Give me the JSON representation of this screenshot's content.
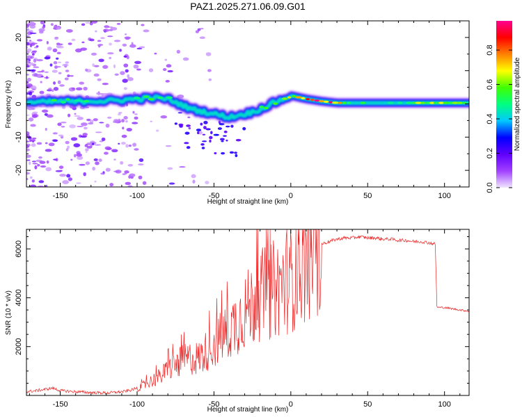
{
  "title": "PAZ1.2025.271.06.09.G01",
  "colors": {
    "snr_line": "#ee2222",
    "background": "#ffffff",
    "axes": "#000000"
  },
  "chart_data": [
    {
      "type": "heatmap",
      "name": "spectrogram",
      "xlabel": "Height of straight line (km)",
      "ylabel": "Frequency (Hz)",
      "xlim": [
        -172,
        116
      ],
      "ylim": [
        -25,
        25
      ],
      "x_ticks": [
        -150,
        -100,
        -50,
        0,
        50,
        100
      ],
      "y_ticks": [
        -20,
        -10,
        0,
        10,
        20
      ],
      "x_tick_labels": [
        "-150",
        "-100",
        "-50",
        "0",
        "50",
        "100"
      ],
      "y_tick_labels": [
        "-20",
        "-10",
        "0",
        "10",
        "20"
      ],
      "colorbar": {
        "label": "Normalized spectral amplitude",
        "range": [
          0,
          0.97
        ],
        "ticks": [
          0.0,
          0.2,
          0.4,
          0.6,
          0.8
        ],
        "tick_labels": [
          "0.0",
          "0.2",
          "0.4",
          "0.6",
          "0.8"
        ],
        "colormap": [
          "#f0e6ff",
          "#a040ff",
          "#6000ff",
          "#0000ff",
          "#00c8ff",
          "#00ff80",
          "#40ff00",
          "#ffff00",
          "#ff8000",
          "#ff0000",
          "#ff0090"
        ]
      },
      "ridge": {
        "x": [
          -172,
          -160,
          -150,
          -140,
          -130,
          -120,
          -110,
          -100,
          -90,
          -80,
          -75,
          -70,
          -65,
          -60,
          -55,
          -50,
          -45,
          -40,
          -35,
          -30,
          -25,
          -20,
          -15,
          -10,
          -5,
          0,
          5,
          10,
          20,
          30,
          40,
          50,
          60,
          70,
          80,
          90,
          100,
          116
        ],
        "freq": [
          0.5,
          0.5,
          0.8,
          0.6,
          1.0,
          0.8,
          1.2,
          1.5,
          1.8,
          1.5,
          0.5,
          -0.5,
          -1.5,
          -2.0,
          -2.5,
          -3.0,
          -3.5,
          -4.0,
          -3.5,
          -3.0,
          -2.5,
          -1.5,
          -0.5,
          0.5,
          1.5,
          2.5,
          2.0,
          1.5,
          0.8,
          0.3,
          0.3,
          0.3,
          0.3,
          0.3,
          0.3,
          0.3,
          0.3,
          0.3
        ],
        "amplitude": [
          0.3,
          0.4,
          0.5,
          0.4,
          0.45,
          0.4,
          0.4,
          0.45,
          0.5,
          0.45,
          0.4,
          0.35,
          0.35,
          0.3,
          0.35,
          0.3,
          0.3,
          0.3,
          0.35,
          0.35,
          0.4,
          0.45,
          0.5,
          0.55,
          0.6,
          0.65,
          0.75,
          0.8,
          0.85,
          0.85,
          0.5,
          0.45,
          0.45,
          0.5,
          0.6,
          0.7,
          0.65,
          0.5
        ]
      }
    },
    {
      "type": "line",
      "name": "snr",
      "xlabel": "Height of straight line (km)",
      "ylabel": "SNR (10 * v/v)",
      "xlim": [
        -172,
        116
      ],
      "ylim": [
        0,
        6800
      ],
      "x_ticks": [
        -150,
        -100,
        -50,
        0,
        50,
        100
      ],
      "y_ticks": [
        2000,
        4000,
        6000
      ],
      "x_tick_labels": [
        "-150",
        "-100",
        "-50",
        "0",
        "50",
        "100"
      ],
      "y_tick_labels": [
        "2000",
        "4000",
        "6000"
      ],
      "series": [
        {
          "name": "SNR",
          "x": [
            -172,
            -165,
            -160,
            -155,
            -150,
            -140,
            -130,
            -120,
            -110,
            -105,
            -100,
            -95,
            -90,
            -85,
            -80,
            -75,
            -70,
            -65,
            -60,
            -55,
            -50,
            -45,
            -40,
            -35,
            -30,
            -25,
            -20,
            -15,
            -10,
            -5,
            0,
            5,
            10,
            15,
            20,
            25,
            30,
            35,
            40,
            45,
            50,
            55,
            60,
            65,
            70,
            75,
            80,
            85,
            90,
            94,
            95,
            96,
            100,
            105,
            110,
            116
          ],
          "values": [
            150,
            200,
            250,
            300,
            200,
            150,
            120,
            100,
            150,
            200,
            300,
            450,
            650,
            800,
            1100,
            1300,
            1500,
            1600,
            1600,
            1900,
            2200,
            2500,
            2800,
            3200,
            3600,
            3900,
            4300,
            4400,
            4600,
            4800,
            5000,
            5400,
            5800,
            6100,
            6200,
            6300,
            6400,
            6450,
            6450,
            6500,
            6450,
            6450,
            6400,
            6400,
            6350,
            6350,
            6300,
            6300,
            6250,
            6200,
            3650,
            3600,
            3600,
            3550,
            3500,
            3450
          ]
        }
      ]
    }
  ]
}
